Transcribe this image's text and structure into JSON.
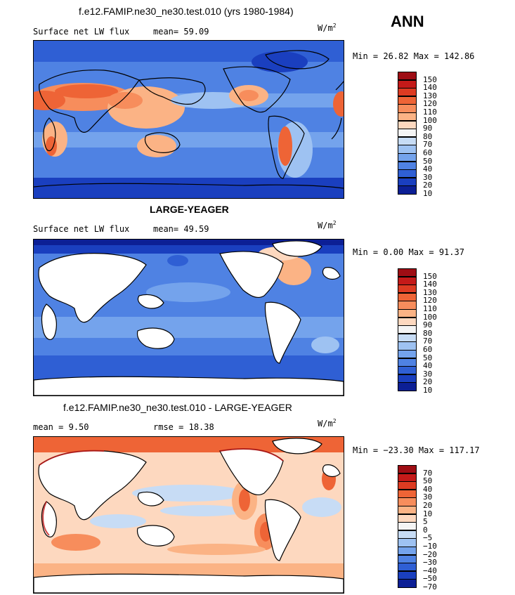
{
  "season": "ANN",
  "panels": [
    {
      "title": "f.e12.FAMIP.ne30_ne30.test.010 (yrs 1980-1984)",
      "left_label": "Surface net LW flux",
      "stat_label": "mean=",
      "stat_value": "59.09",
      "units": "W/m",
      "units_sup": "2",
      "min_max": "Min =  26.82 Max = 142.86",
      "colorbar": {
        "labels": [
          "150",
          "140",
          "130",
          "120",
          "110",
          "100",
          "90",
          "80",
          "70",
          "60",
          "50",
          "40",
          "30",
          "20",
          "10"
        ],
        "colors": [
          "#9e0d14",
          "#c41a19",
          "#dd3b22",
          "#ee6436",
          "#f78d5c",
          "#fbb385",
          "#fdd8bf",
          "#f4f4f4",
          "#c7dcf5",
          "#9ec2f2",
          "#74a3ec",
          "#4f82e3",
          "#2f5fd4",
          "#1a3fbf",
          "#0c1f95"
        ]
      },
      "map_style": "model"
    },
    {
      "title": "LARGE-YEAGER",
      "left_label": "Surface net LW flux",
      "stat_label": "mean=",
      "stat_value": "49.59",
      "units": "W/m",
      "units_sup": "2",
      "min_max": "Min =   0.00 Max =  91.37",
      "colorbar": {
        "labels": [
          "150",
          "140",
          "130",
          "120",
          "110",
          "100",
          "90",
          "80",
          "70",
          "60",
          "50",
          "40",
          "30",
          "20",
          "10"
        ],
        "colors": [
          "#9e0d14",
          "#c41a19",
          "#dd3b22",
          "#ee6436",
          "#f78d5c",
          "#fbb385",
          "#fdd8bf",
          "#f4f4f4",
          "#c7dcf5",
          "#9ec2f2",
          "#74a3ec",
          "#4f82e3",
          "#2f5fd4",
          "#1a3fbf",
          "#0c1f95"
        ]
      },
      "map_style": "obs"
    },
    {
      "title": "f.e12.FAMIP.ne30_ne30.test.010 - LARGE-YEAGER",
      "left_label": "mean =",
      "left_value": "9.50",
      "stat_label": "rmse =",
      "stat_value": "18.38",
      "units": "W/m",
      "units_sup": "2",
      "min_max": "Min = −23.30 Max = 117.17",
      "colorbar": {
        "labels": [
          "70",
          "50",
          "40",
          "30",
          "20",
          "10",
          "5",
          "0",
          "−5",
          "−10",
          "−20",
          "−30",
          "−40",
          "−50",
          "−70"
        ],
        "colors": [
          "#9e0d14",
          "#c41a19",
          "#dd3b22",
          "#ee6436",
          "#f78d5c",
          "#fbb385",
          "#fdd8bf",
          "#f4f4f4",
          "#c7dcf5",
          "#9ec2f2",
          "#74a3ec",
          "#4f82e3",
          "#2f5fd4",
          "#1a3fbf",
          "#0c1f95"
        ]
      },
      "map_style": "diff"
    }
  ]
}
